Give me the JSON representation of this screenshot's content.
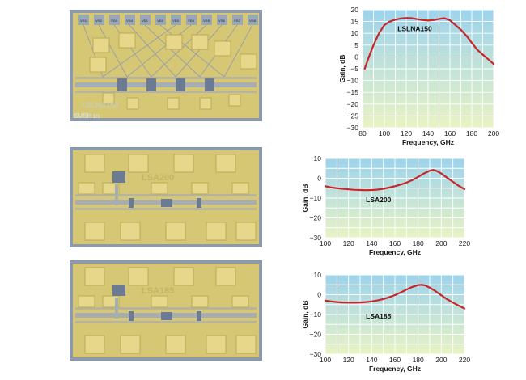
{
  "photos": [
    {
      "label": "LSLNA150",
      "pad_labels": [
        "VG1",
        "VG2",
        "VG3",
        "VG4",
        "VD1",
        "VD2",
        "VD3",
        "VD4",
        "VG5",
        "VG6",
        "VG7",
        "VG8",
        "VD5",
        "VD6",
        "VD7"
      ],
      "corner_label": "SUSH",
      "corner_code": "1/1"
    },
    {
      "label": "LSA200"
    },
    {
      "label": "LSA185"
    }
  ],
  "colors": {
    "curve": "#c8262b",
    "grid": "#ffffff",
    "grad_top": "#9dd3ec",
    "grad_bottom": "#e9f3c4",
    "chip_bg": "#d6c774",
    "chip_dark": "#b9ab55",
    "pad": "#e6d78a",
    "line_gray": "#a8adb2",
    "photo_border": "#7f8ea6"
  },
  "chart_data": [
    {
      "type": "line",
      "title": "",
      "annotation": "LSLNA150",
      "xlabel": "Frequency, GHz",
      "ylabel": "Gain, dB",
      "xlim": [
        80,
        200
      ],
      "ylim": [
        -30,
        20
      ],
      "xticks": [
        "80",
        "100",
        "120",
        "140",
        "160",
        "180",
        "200"
      ],
      "yticks": [
        "20",
        "15",
        "10",
        "5",
        "0",
        "−5",
        "−10",
        "−15",
        "−20",
        "−25",
        "−30"
      ],
      "grid": true,
      "series": [
        {
          "x": [
            82,
            85,
            90,
            95,
            100,
            105,
            110,
            115,
            120,
            125,
            130,
            135,
            140,
            145,
            150,
            155,
            160,
            165,
            170,
            175,
            180,
            185,
            190,
            195,
            200
          ],
          "y": [
            -5,
            -1,
            5,
            10,
            13.5,
            15,
            15.8,
            16.3,
            16.5,
            16.4,
            16,
            15.6,
            15.4,
            15.6,
            16.1,
            16.4,
            15.5,
            13.5,
            11.5,
            9,
            6,
            3,
            1,
            -1,
            -3
          ]
        }
      ]
    },
    {
      "type": "line",
      "title": "",
      "annotation": "LSA200",
      "xlabel": "Frequency, GHz",
      "ylabel": "Gain, dB",
      "xlim": [
        100,
        220
      ],
      "ylim": [
        -30,
        10
      ],
      "xticks": [
        "100",
        "120",
        "140",
        "160",
        "180",
        "200",
        "220"
      ],
      "yticks": [
        "10",
        "0",
        "−10",
        "−20",
        "−30"
      ],
      "grid": true,
      "series": [
        {
          "x": [
            100,
            105,
            110,
            115,
            120,
            125,
            130,
            135,
            140,
            145,
            150,
            155,
            160,
            165,
            170,
            175,
            180,
            185,
            190,
            193,
            196,
            200,
            205,
            210,
            215,
            220
          ],
          "y": [
            -4,
            -4.6,
            -5,
            -5.3,
            -5.6,
            -5.8,
            -5.9,
            -6,
            -5.9,
            -5.7,
            -5.3,
            -4.7,
            -4,
            -3.2,
            -2.2,
            -0.9,
            0.7,
            2.4,
            3.8,
            4.2,
            3.7,
            2.4,
            0.3,
            -1.8,
            -3.8,
            -5.5
          ]
        }
      ]
    },
    {
      "type": "line",
      "title": "",
      "annotation": "LSA185",
      "xlabel": "Frequency, GHz",
      "ylabel": "Gain, dB",
      "xlim": [
        100,
        220
      ],
      "ylim": [
        -30,
        10
      ],
      "xticks": [
        "100",
        "120",
        "140",
        "160",
        "180",
        "200",
        "220"
      ],
      "yticks": [
        "10",
        "0",
        "−10",
        "−20",
        "−30"
      ],
      "grid": true,
      "series": [
        {
          "x": [
            100,
            105,
            110,
            115,
            120,
            125,
            130,
            135,
            140,
            145,
            150,
            155,
            160,
            165,
            170,
            175,
            180,
            183,
            186,
            190,
            195,
            200,
            205,
            210,
            215,
            220
          ],
          "y": [
            -3,
            -3.4,
            -3.7,
            -3.9,
            -4,
            -4,
            -3.9,
            -3.7,
            -3.4,
            -2.9,
            -2.2,
            -1.3,
            -0.2,
            1.1,
            2.6,
            3.9,
            4.8,
            5,
            4.7,
            3.6,
            1.8,
            -0.3,
            -2.3,
            -4,
            -5.5,
            -7
          ]
        }
      ]
    }
  ]
}
